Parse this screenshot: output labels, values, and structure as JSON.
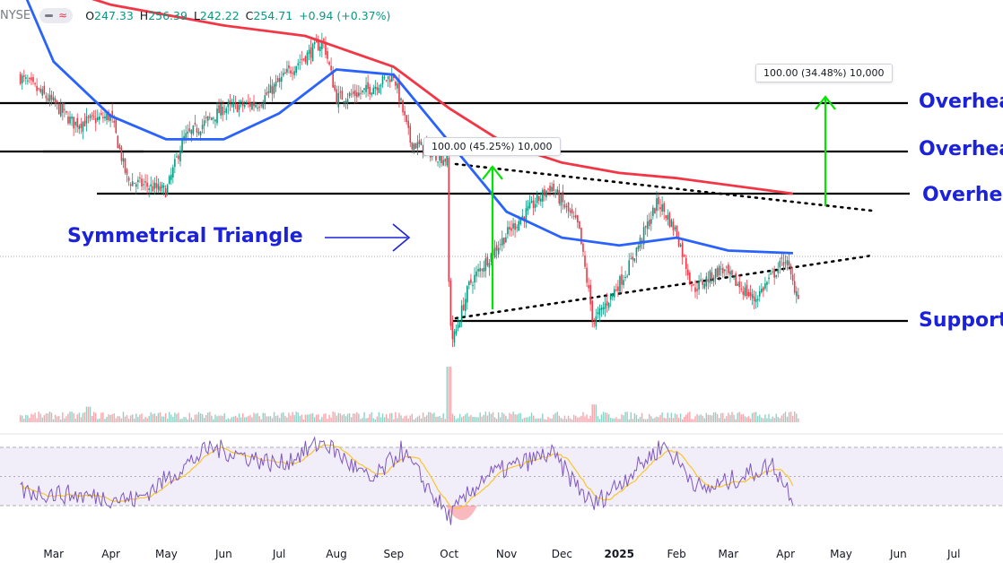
{
  "header": {
    "symbol": "NYSE",
    "open_label": "O",
    "open": "247.33",
    "high_label": "H",
    "high": "256.39",
    "low_label": "L",
    "low": "242.22",
    "close_label": "C",
    "close": "254.71",
    "change": "+0.94 (+0.37%)"
  },
  "annotations": {
    "triangle_label": "Symmetrical Triangle",
    "measure_1": "100.00 (45.25%) 10,000",
    "measure_2": "100.00 (34.48%) 10,000",
    "levels": [
      {
        "label": "Overhead",
        "price": 315
      },
      {
        "label": "Overhead",
        "price": 288
      },
      {
        "label": "Overhead",
        "price": 265
      },
      {
        "label": "Support",
        "price": 198
      }
    ]
  },
  "colors": {
    "up": "#089981",
    "down": "#f23645",
    "ma_fast": "#2962ff",
    "ma_slow": "#f23645",
    "level": "#000000",
    "label": "#1b22d9",
    "arrow": "#00e600",
    "rsi": "#7e57c2",
    "rsi_ma": "#f7c52f"
  },
  "chart_data": {
    "type": "candlestick",
    "x_axis": {
      "labels": [
        "Mar",
        "Apr",
        "May",
        "Jun",
        "Jul",
        "Aug",
        "Sep",
        "Oct",
        "Nov",
        "Dec",
        "2025",
        "Feb",
        "Mar",
        "Apr",
        "May",
        "Jun",
        "Jul"
      ],
      "label_dates": [
        "2024-03",
        "2024-04",
        "2024-05",
        "2024-06",
        "2024-07",
        "2024-08",
        "2024-09",
        "2024-10",
        "2024-11",
        "2024-12",
        "2025-01",
        "2025-02",
        "2025-03",
        "2025-04",
        "2025-05",
        "2025-06",
        "2025-07"
      ]
    },
    "price_range": [
      176,
      352
    ],
    "price_path": [
      {
        "date": "2024-02-12",
        "close": 310
      },
      {
        "date": "2024-03-01",
        "close": 300
      },
      {
        "date": "2024-03-12",
        "close": 292
      },
      {
        "date": "2024-04-01",
        "close": 295
      },
      {
        "date": "2024-04-10",
        "close": 270
      },
      {
        "date": "2024-05-01",
        "close": 266
      },
      {
        "date": "2024-05-10",
        "close": 286
      },
      {
        "date": "2024-06-01",
        "close": 298
      },
      {
        "date": "2024-06-20",
        "close": 300
      },
      {
        "date": "2024-07-10",
        "close": 315
      },
      {
        "date": "2024-07-25",
        "close": 324
      },
      {
        "date": "2024-08-01",
        "close": 302
      },
      {
        "date": "2024-08-15",
        "close": 304
      },
      {
        "date": "2024-09-01",
        "close": 311
      },
      {
        "date": "2024-09-10",
        "close": 285
      },
      {
        "date": "2024-09-30",
        "close": 278
      },
      {
        "date": "2024-10-01",
        "close": 220
      },
      {
        "date": "2024-10-03",
        "close": 208
      },
      {
        "date": "2024-10-12",
        "close": 230
      },
      {
        "date": "2024-10-22",
        "close": 240
      },
      {
        "date": "2024-11-03",
        "close": 251
      },
      {
        "date": "2024-11-25",
        "close": 268
      },
      {
        "date": "2024-12-10",
        "close": 252
      },
      {
        "date": "2024-12-18",
        "close": 215
      },
      {
        "date": "2025-01-05",
        "close": 235
      },
      {
        "date": "2025-01-22",
        "close": 262
      },
      {
        "date": "2025-02-01",
        "close": 250
      },
      {
        "date": "2025-02-10",
        "close": 228
      },
      {
        "date": "2025-02-25",
        "close": 236
      },
      {
        "date": "2025-03-15",
        "close": 224
      },
      {
        "date": "2025-04-01",
        "close": 240
      },
      {
        "date": "2025-04-05",
        "close": 230
      },
      {
        "date": "2025-04-08",
        "close": 226
      }
    ],
    "ma_50": [
      {
        "date": "2024-02-12",
        "value": 346
      },
      {
        "date": "2024-03-01",
        "value": 316
      },
      {
        "date": "2024-04-01",
        "value": 295
      },
      {
        "date": "2024-05-01",
        "value": 286
      },
      {
        "date": "2024-06-01",
        "value": 286
      },
      {
        "date": "2024-07-01",
        "value": 296
      },
      {
        "date": "2024-08-01",
        "value": 313
      },
      {
        "date": "2024-09-01",
        "value": 311
      },
      {
        "date": "2024-10-01",
        "value": 285
      },
      {
        "date": "2024-11-01",
        "value": 258
      },
      {
        "date": "2024-12-01",
        "value": 248
      },
      {
        "date": "2025-01-01",
        "value": 245
      },
      {
        "date": "2025-02-01",
        "value": 248
      },
      {
        "date": "2025-03-01",
        "value": 243
      },
      {
        "date": "2025-04-05",
        "value": 242
      }
    ],
    "ma_200": [
      {
        "date": "2024-02-12",
        "value": 349
      },
      {
        "date": "2024-04-01",
        "value": 338
      },
      {
        "date": "2024-06-01",
        "value": 330
      },
      {
        "date": "2024-07-15",
        "value": 326
      },
      {
        "date": "2024-09-01",
        "value": 314
      },
      {
        "date": "2024-10-01",
        "value": 298
      },
      {
        "date": "2024-11-01",
        "value": 284
      },
      {
        "date": "2024-12-01",
        "value": 277
      },
      {
        "date": "2025-01-01",
        "value": 273
      },
      {
        "date": "2025-02-01",
        "value": 271
      },
      {
        "date": "2025-04-05",
        "value": 265
      }
    ],
    "trendlines": [
      {
        "name": "triangle-upper",
        "from": {
          "date": "2024-10-01",
          "price": 276
        },
        "to": {
          "date": "2025-04-20",
          "price": 258
        }
      },
      {
        "name": "triangle-lower",
        "from": {
          "date": "2024-10-01",
          "price": 198
        },
        "to": {
          "date": "2025-04-20",
          "price": 234
        }
      }
    ],
    "volume_spikes": [
      {
        "date": "2024-10-01",
        "relative": 1.0
      },
      {
        "date": "2024-03-20",
        "relative": 0.28
      },
      {
        "date": "2024-12-18",
        "relative": 0.32
      }
    ],
    "rsi": {
      "bands": [
        70,
        50,
        30
      ],
      "points": [
        {
          "date": "2024-02-12",
          "value": 40
        },
        {
          "date": "2024-04-15",
          "value": 34
        },
        {
          "date": "2024-05-25",
          "value": 70
        },
        {
          "date": "2024-07-01",
          "value": 58
        },
        {
          "date": "2024-07-25",
          "value": 74
        },
        {
          "date": "2024-08-20",
          "value": 46
        },
        {
          "date": "2024-09-05",
          "value": 68
        },
        {
          "date": "2024-10-01",
          "value": 22
        },
        {
          "date": "2024-10-20",
          "value": 50
        },
        {
          "date": "2024-11-25",
          "value": 66
        },
        {
          "date": "2024-12-18",
          "value": 30
        },
        {
          "date": "2025-01-25",
          "value": 72
        },
        {
          "date": "2025-02-15",
          "value": 40
        },
        {
          "date": "2025-03-25",
          "value": 58
        },
        {
          "date": "2025-04-05",
          "value": 36
        }
      ]
    },
    "grid": false,
    "legend": "none"
  }
}
